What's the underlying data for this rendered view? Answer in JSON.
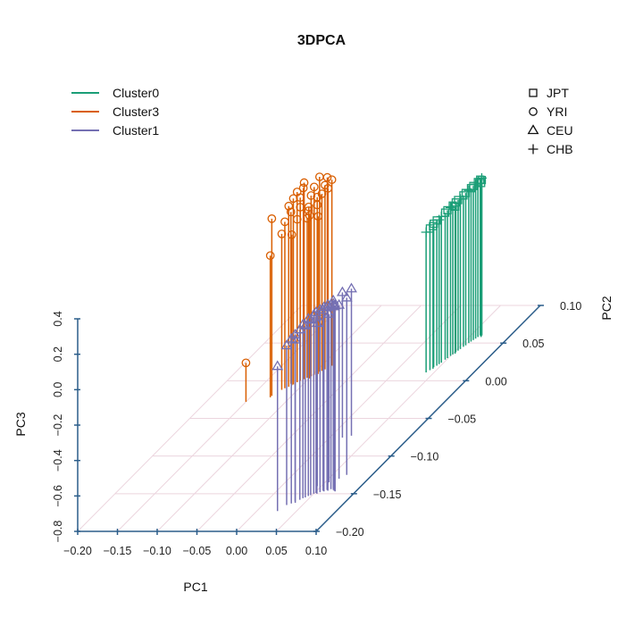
{
  "chart_data": {
    "type": "scatter",
    "title": "3DPCA",
    "xlabel": "PC1",
    "ylabel": "PC2",
    "zlabel": "PC3",
    "xlim": [
      -0.2,
      0.1
    ],
    "ylim": [
      -0.2,
      0.1
    ],
    "zlim": [
      -0.8,
      0.4
    ],
    "x_ticks": [
      "−0.20",
      "−0.15",
      "−0.10",
      "−0.05",
      "0.00",
      "0.05",
      "0.10"
    ],
    "y_ticks": [
      "−0.20",
      "−0.15",
      "−0.10",
      "−0.05",
      "0.00",
      "0.05",
      "0.10"
    ],
    "z_ticks": [
      "−0.8",
      "−0.6",
      "−0.4",
      "−0.2",
      "0.0",
      "0.2",
      "0.4"
    ],
    "grid": true,
    "plot_style": "3D scatter with vertical drop lines to the PC1-PC2 floor",
    "color_legend": {
      "placement": "top-left",
      "entries": [
        {
          "name": "Cluster0",
          "color": "#1b9e77"
        },
        {
          "name": "Cluster3",
          "color": "#d95f02"
        },
        {
          "name": "Cluster1",
          "color": "#7570b3"
        }
      ]
    },
    "shape_legend": {
      "placement": "top-right",
      "entries": [
        {
          "name": "JPT",
          "symbol": "square"
        },
        {
          "name": "YRI",
          "symbol": "circle"
        },
        {
          "name": "CEU",
          "symbol": "triangle"
        },
        {
          "name": "CHB",
          "symbol": "plus"
        }
      ]
    },
    "series": [
      {
        "name": "Cluster0",
        "color": "#1b9e77",
        "points": [
          [
            0.04,
            0.011,
            -0.008,
            "CHB"
          ],
          [
            0.042,
            0.014,
            0.0,
            "JPT"
          ],
          [
            0.043,
            0.018,
            0.01,
            "JPT"
          ],
          [
            0.044,
            0.016,
            0.005,
            "JPT"
          ],
          [
            0.046,
            0.022,
            0.015,
            "CHB"
          ],
          [
            0.045,
            0.02,
            0.02,
            "JPT"
          ],
          [
            0.047,
            0.024,
            0.025,
            "CHB"
          ],
          [
            0.048,
            0.028,
            0.03,
            "JPT"
          ],
          [
            0.049,
            0.03,
            0.035,
            "JPT"
          ],
          [
            0.05,
            0.033,
            0.038,
            "CHB"
          ],
          [
            0.051,
            0.035,
            0.04,
            "JPT"
          ],
          [
            0.052,
            0.038,
            0.045,
            "JPT"
          ],
          [
            0.053,
            0.036,
            0.03,
            "JPT"
          ],
          [
            0.053,
            0.04,
            0.05,
            "JPT"
          ],
          [
            0.054,
            0.042,
            0.048,
            "CHB"
          ],
          [
            0.055,
            0.045,
            0.055,
            "JPT"
          ],
          [
            0.056,
            0.047,
            0.06,
            "JPT"
          ],
          [
            0.057,
            0.05,
            0.062,
            "CHB"
          ],
          [
            0.058,
            0.052,
            0.066,
            "JPT"
          ],
          [
            0.059,
            0.054,
            0.07,
            "JPT"
          ],
          [
            0.06,
            0.056,
            0.072,
            "CHB"
          ],
          [
            0.061,
            0.058,
            0.075,
            "JPT"
          ],
          [
            0.062,
            0.06,
            0.08,
            "JPT"
          ],
          [
            0.063,
            0.061,
            0.085,
            "CHB"
          ],
          [
            0.064,
            0.06,
            0.078,
            "JPT"
          ],
          [
            0.065,
            0.058,
            0.07,
            "JPT"
          ]
        ]
      },
      {
        "name": "Cluster3",
        "color": "#d95f02",
        "points": [
          [
            -0.15,
            -0.028,
            -0.58,
            "YRI"
          ],
          [
            -0.125,
            -0.022,
            0.0,
            "YRI"
          ],
          [
            -0.125,
            -0.02,
            0.2,
            "YRI"
          ],
          [
            -0.12,
            -0.012,
            0.08,
            "YRI"
          ],
          [
            -0.118,
            -0.01,
            0.14,
            "YRI"
          ],
          [
            -0.116,
            -0.004,
            0.17,
            "YRI"
          ],
          [
            -0.115,
            -0.008,
            0.22,
            "YRI"
          ],
          [
            -0.113,
            -0.006,
            0.05,
            "YRI"
          ],
          [
            -0.112,
            -0.005,
            0.25,
            "YRI"
          ],
          [
            -0.111,
            -0.001,
            0.27,
            "YRI"
          ],
          [
            -0.11,
            -0.002,
            0.12,
            "YRI"
          ],
          [
            -0.109,
            0.001,
            0.23,
            "YRI"
          ],
          [
            -0.108,
            0.0,
            0.18,
            "YRI"
          ],
          [
            -0.106,
            0.002,
            0.28,
            "YRI"
          ],
          [
            -0.105,
            0.002,
            0.31,
            "YRI"
          ],
          [
            -0.104,
            0.007,
            0.13,
            "YRI"
          ],
          [
            -0.103,
            0.004,
            0.1,
            "YRI"
          ],
          [
            -0.102,
            0.005,
            0.16,
            "YRI"
          ],
          [
            -0.1,
            0.006,
            0.22,
            "YRI"
          ],
          [
            -0.099,
            0.003,
            0.12,
            "YRI"
          ],
          [
            -0.098,
            0.008,
            0.26,
            "YRI"
          ],
          [
            -0.097,
            0.011,
            0.19,
            "YRI"
          ],
          [
            -0.096,
            0.01,
            0.15,
            "YRI"
          ],
          [
            -0.095,
            0.012,
            0.3,
            "YRI"
          ],
          [
            -0.094,
            0.009,
            0.09,
            "YRI"
          ],
          [
            -0.093,
            0.013,
            0.2,
            "YRI"
          ],
          [
            -0.091,
            0.015,
            0.24,
            "YRI"
          ],
          [
            -0.09,
            0.018,
            0.21,
            "YRI"
          ],
          [
            -0.089,
            0.016,
            0.28,
            "YRI"
          ],
          [
            -0.087,
            0.02,
            0.25,
            "YRI"
          ]
        ]
      },
      {
        "name": "Cluster1",
        "color": "#7570b3",
        "points": [
          [
            0.016,
            -0.0755,
            0.02,
            "CEU"
          ],
          [
            0.025,
            -0.073,
            0.03,
            "CEU"
          ],
          [
            0.026,
            -0.173,
            0.017,
            "CEU"
          ],
          [
            0.03,
            -0.165,
            0.1,
            "CEU"
          ],
          [
            0.034,
            -0.163,
            0.13,
            "CEU"
          ],
          [
            0.036,
            -0.16,
            0.14,
            "CEU"
          ],
          [
            0.038,
            -0.162,
            0.12,
            "CEU"
          ],
          [
            0.04,
            -0.158,
            0.16,
            "CEU"
          ],
          [
            0.042,
            -0.156,
            0.18,
            "CEU"
          ],
          [
            0.044,
            -0.155,
            0.17,
            "CEU"
          ],
          [
            0.045,
            -0.14,
            0.12,
            "CEU"
          ],
          [
            0.046,
            -0.153,
            0.2,
            "CEU"
          ],
          [
            0.048,
            -0.152,
            0.19,
            "CEU"
          ],
          [
            0.05,
            -0.15,
            0.21,
            "CEU"
          ],
          [
            0.052,
            -0.149,
            0.22,
            "CEU"
          ],
          [
            0.054,
            -0.15,
            0.2,
            "CEU"
          ],
          [
            0.055,
            -0.135,
            0.15,
            "CEU"
          ],
          [
            0.056,
            -0.148,
            0.23,
            "CEU"
          ],
          [
            0.058,
            -0.146,
            0.22,
            "CEU"
          ],
          [
            0.06,
            -0.147,
            0.24,
            "CEU"
          ],
          [
            0.062,
            -0.145,
            0.23,
            "CEU"
          ],
          [
            0.063,
            -0.13,
            0.18,
            "CEU"
          ],
          [
            0.064,
            -0.146,
            0.25,
            "CEU"
          ],
          [
            0.066,
            -0.144,
            0.24,
            "CEU"
          ],
          [
            0.068,
            -0.143,
            0.26,
            "CEU"
          ],
          [
            0.068,
            -0.125,
            0.2,
            "CEU"
          ],
          [
            0.07,
            -0.145,
            0.25,
            "CEU"
          ],
          [
            0.072,
            -0.146,
            0.24,
            "CEU"
          ],
          [
            0.074,
            -0.147,
            0.25,
            "CEU"
          ]
        ]
      }
    ]
  }
}
